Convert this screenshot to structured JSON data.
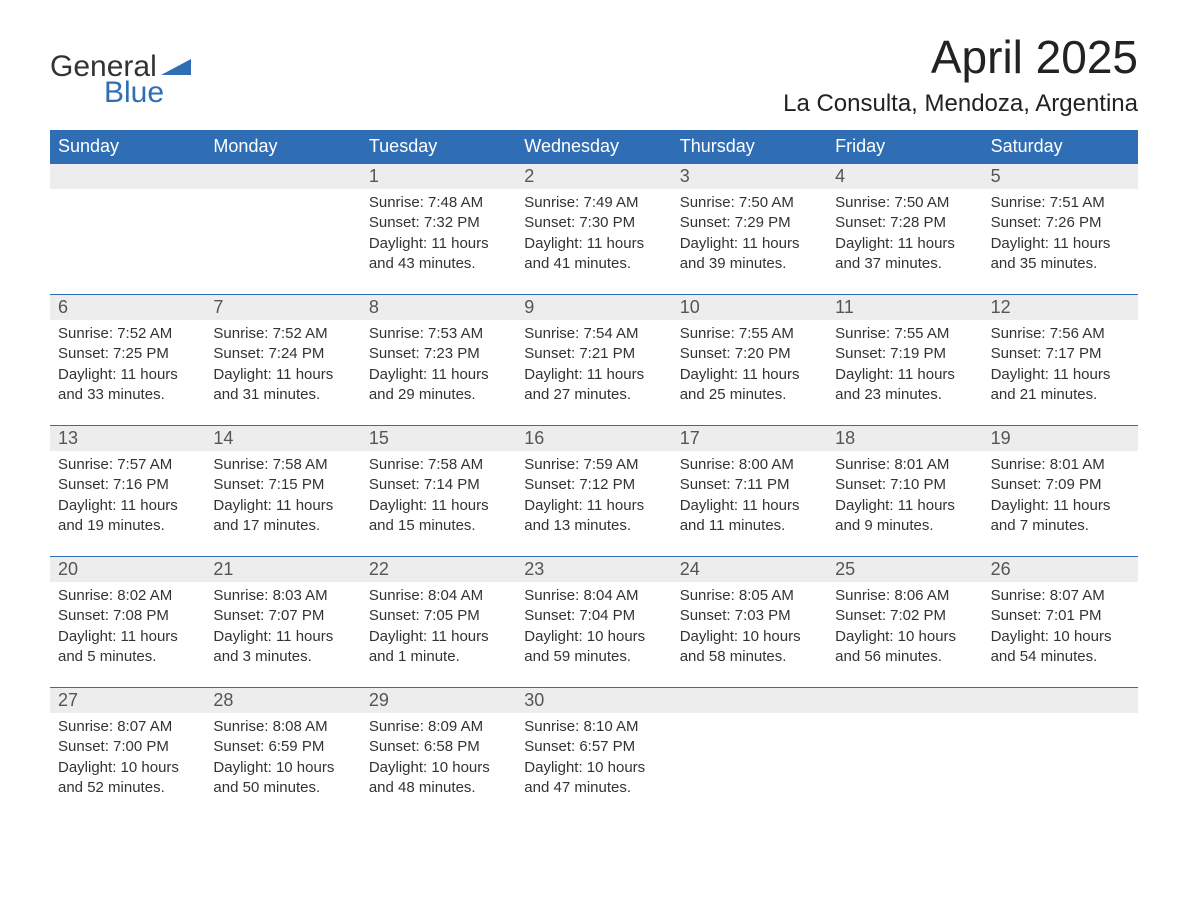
{
  "logo": {
    "general": "General",
    "blue": "Blue"
  },
  "title": "April 2025",
  "location": "La Consulta, Mendoza, Argentina",
  "colors": {
    "header_bg": "#2f6eb5",
    "header_text": "#ffffff",
    "daynum_bg": "#ededed",
    "daynum_text": "#555555",
    "body_text": "#333333",
    "background": "#ffffff"
  },
  "day_names": [
    "Sunday",
    "Monday",
    "Tuesday",
    "Wednesday",
    "Thursday",
    "Friday",
    "Saturday"
  ],
  "weeks": [
    [
      null,
      null,
      {
        "n": "1",
        "sunrise": "7:48 AM",
        "sunset": "7:32 PM",
        "daylight": "11 hours and 43 minutes."
      },
      {
        "n": "2",
        "sunrise": "7:49 AM",
        "sunset": "7:30 PM",
        "daylight": "11 hours and 41 minutes."
      },
      {
        "n": "3",
        "sunrise": "7:50 AM",
        "sunset": "7:29 PM",
        "daylight": "11 hours and 39 minutes."
      },
      {
        "n": "4",
        "sunrise": "7:50 AM",
        "sunset": "7:28 PM",
        "daylight": "11 hours and 37 minutes."
      },
      {
        "n": "5",
        "sunrise": "7:51 AM",
        "sunset": "7:26 PM",
        "daylight": "11 hours and 35 minutes."
      }
    ],
    [
      {
        "n": "6",
        "sunrise": "7:52 AM",
        "sunset": "7:25 PM",
        "daylight": "11 hours and 33 minutes."
      },
      {
        "n": "7",
        "sunrise": "7:52 AM",
        "sunset": "7:24 PM",
        "daylight": "11 hours and 31 minutes."
      },
      {
        "n": "8",
        "sunrise": "7:53 AM",
        "sunset": "7:23 PM",
        "daylight": "11 hours and 29 minutes."
      },
      {
        "n": "9",
        "sunrise": "7:54 AM",
        "sunset": "7:21 PM",
        "daylight": "11 hours and 27 minutes."
      },
      {
        "n": "10",
        "sunrise": "7:55 AM",
        "sunset": "7:20 PM",
        "daylight": "11 hours and 25 minutes."
      },
      {
        "n": "11",
        "sunrise": "7:55 AM",
        "sunset": "7:19 PM",
        "daylight": "11 hours and 23 minutes."
      },
      {
        "n": "12",
        "sunrise": "7:56 AM",
        "sunset": "7:17 PM",
        "daylight": "11 hours and 21 minutes."
      }
    ],
    [
      {
        "n": "13",
        "sunrise": "7:57 AM",
        "sunset": "7:16 PM",
        "daylight": "11 hours and 19 minutes."
      },
      {
        "n": "14",
        "sunrise": "7:58 AM",
        "sunset": "7:15 PM",
        "daylight": "11 hours and 17 minutes."
      },
      {
        "n": "15",
        "sunrise": "7:58 AM",
        "sunset": "7:14 PM",
        "daylight": "11 hours and 15 minutes."
      },
      {
        "n": "16",
        "sunrise": "7:59 AM",
        "sunset": "7:12 PM",
        "daylight": "11 hours and 13 minutes."
      },
      {
        "n": "17",
        "sunrise": "8:00 AM",
        "sunset": "7:11 PM",
        "daylight": "11 hours and 11 minutes."
      },
      {
        "n": "18",
        "sunrise": "8:01 AM",
        "sunset": "7:10 PM",
        "daylight": "11 hours and 9 minutes."
      },
      {
        "n": "19",
        "sunrise": "8:01 AM",
        "sunset": "7:09 PM",
        "daylight": "11 hours and 7 minutes."
      }
    ],
    [
      {
        "n": "20",
        "sunrise": "8:02 AM",
        "sunset": "7:08 PM",
        "daylight": "11 hours and 5 minutes."
      },
      {
        "n": "21",
        "sunrise": "8:03 AM",
        "sunset": "7:07 PM",
        "daylight": "11 hours and 3 minutes."
      },
      {
        "n": "22",
        "sunrise": "8:04 AM",
        "sunset": "7:05 PM",
        "daylight": "11 hours and 1 minute."
      },
      {
        "n": "23",
        "sunrise": "8:04 AM",
        "sunset": "7:04 PM",
        "daylight": "10 hours and 59 minutes."
      },
      {
        "n": "24",
        "sunrise": "8:05 AM",
        "sunset": "7:03 PM",
        "daylight": "10 hours and 58 minutes."
      },
      {
        "n": "25",
        "sunrise": "8:06 AM",
        "sunset": "7:02 PM",
        "daylight": "10 hours and 56 minutes."
      },
      {
        "n": "26",
        "sunrise": "8:07 AM",
        "sunset": "7:01 PM",
        "daylight": "10 hours and 54 minutes."
      }
    ],
    [
      {
        "n": "27",
        "sunrise": "8:07 AM",
        "sunset": "7:00 PM",
        "daylight": "10 hours and 52 minutes."
      },
      {
        "n": "28",
        "sunrise": "8:08 AM",
        "sunset": "6:59 PM",
        "daylight": "10 hours and 50 minutes."
      },
      {
        "n": "29",
        "sunrise": "8:09 AM",
        "sunset": "6:58 PM",
        "daylight": "10 hours and 48 minutes."
      },
      {
        "n": "30",
        "sunrise": "8:10 AM",
        "sunset": "6:57 PM",
        "daylight": "10 hours and 47 minutes."
      },
      null,
      null,
      null
    ]
  ],
  "labels": {
    "sunrise": "Sunrise: ",
    "sunset": "Sunset: ",
    "daylight": "Daylight: "
  }
}
